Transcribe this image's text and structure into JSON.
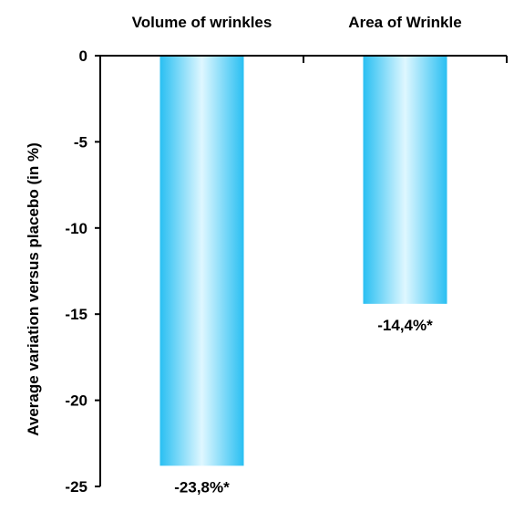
{
  "chart_data": {
    "type": "bar",
    "categories": [
      "Volume of wrinkles",
      "Area of Wrinkle"
    ],
    "values": [
      -23.8,
      -14.4
    ],
    "data_labels": [
      "-23,8%*",
      "-14,4%*"
    ],
    "title": "",
    "xlabel": "",
    "ylabel": "Average variation versus placebo (in %)",
    "ylim": [
      -25,
      0
    ],
    "yticks": [
      0,
      -5,
      -10,
      -15,
      -20,
      -25
    ],
    "ytick_labels": [
      "0",
      "-5",
      "-10",
      "-15",
      "-20",
      "-25"
    ],
    "x_axis_position": "top",
    "grid": false,
    "legend": "none",
    "colors": {
      "bar_edge": "#29bff2",
      "bar_center": "#dff7ff",
      "axis": "#000000"
    }
  }
}
